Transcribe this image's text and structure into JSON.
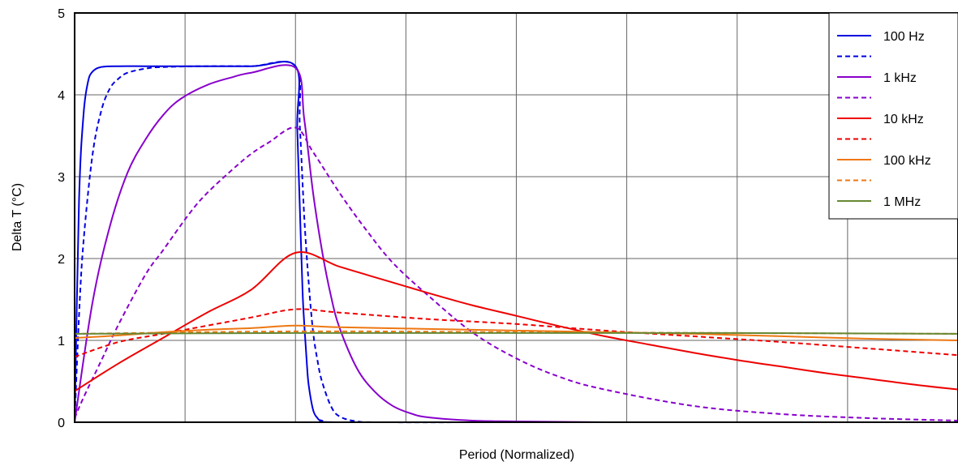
{
  "chart_data": {
    "type": "line",
    "title": "",
    "xlabel": "Period (Normalized)",
    "ylabel": "Delta T (°C)",
    "xlim": [
      0,
      1
    ],
    "ylim": [
      0,
      5
    ],
    "yticks": [
      0,
      1,
      2,
      3,
      4,
      5
    ],
    "x_gridlines": 8,
    "grid": true,
    "legend": {
      "placement": "top-right",
      "entries": [
        {
          "label": "100 Hz",
          "color": "#0000e0",
          "dash": "solid"
        },
        {
          "label": "",
          "color": "#0000e0",
          "dash": "dashed"
        },
        {
          "label": "1 kHz",
          "color": "#8800cc",
          "dash": "solid"
        },
        {
          "label": "",
          "color": "#8800cc",
          "dash": "dashed"
        },
        {
          "label": "10 kHz",
          "color": "#ee0000",
          "dash": "solid"
        },
        {
          "label": "",
          "color": "#ee0000",
          "dash": "dashed"
        },
        {
          "label": "100 kHz",
          "color": "#ee7711",
          "dash": "solid"
        },
        {
          "label": "",
          "color": "#ee7711",
          "dash": "dashed"
        },
        {
          "label": "1 MHz",
          "color": "#668833",
          "dash": "solid"
        }
      ]
    },
    "series": [
      {
        "color": "#0000e0",
        "dash": "solid",
        "x": [
          0,
          0.005,
          0.01,
          0.015,
          0.02,
          0.03,
          0.05,
          0.08,
          0.12,
          0.2,
          0.25,
          0.252,
          0.255,
          0.258,
          0.26,
          0.263,
          0.265,
          0.27,
          0.275,
          0.28,
          0.3,
          0.5,
          0.75,
          1.0
        ],
        "y": [
          0,
          2.7,
          3.75,
          4.15,
          4.28,
          4.34,
          4.35,
          4.35,
          4.35,
          4.35,
          4.35,
          3.6,
          2.6,
          1.6,
          1.2,
          0.7,
          0.45,
          0.15,
          0.05,
          0.02,
          0,
          0,
          0,
          0
        ]
      },
      {
        "color": "#0000e0",
        "dash": "dashed",
        "x": [
          0,
          0.005,
          0.01,
          0.02,
          0.03,
          0.04,
          0.05,
          0.06,
          0.08,
          0.1,
          0.15,
          0.2,
          0.25,
          0.255,
          0.26,
          0.265,
          0.27,
          0.275,
          0.28,
          0.29,
          0.3,
          0.32,
          0.35,
          0.5,
          0.75,
          1.0
        ],
        "y": [
          0,
          1.3,
          2.2,
          3.25,
          3.8,
          4.08,
          4.2,
          4.27,
          4.32,
          4.34,
          4.35,
          4.35,
          4.35,
          3.6,
          2.5,
          1.7,
          1.1,
          0.75,
          0.5,
          0.2,
          0.07,
          0.01,
          0,
          0,
          0,
          0
        ]
      },
      {
        "color": "#8800cc",
        "dash": "solid",
        "x": [
          0,
          0.02,
          0.04,
          0.06,
          0.08,
          0.1,
          0.12,
          0.15,
          0.18,
          0.2,
          0.25,
          0.26,
          0.27,
          0.28,
          0.29,
          0.3,
          0.32,
          0.34,
          0.36,
          0.38,
          0.4,
          0.45,
          0.5,
          0.6,
          0.75,
          1.0
        ],
        "y": [
          0,
          1.45,
          2.4,
          3.05,
          3.45,
          3.75,
          3.95,
          4.12,
          4.22,
          4.27,
          4.33,
          3.7,
          2.8,
          2.1,
          1.55,
          1.15,
          0.65,
          0.37,
          0.2,
          0.11,
          0.06,
          0.02,
          0.01,
          0,
          0,
          0
        ]
      },
      {
        "color": "#8800cc",
        "dash": "dashed",
        "x": [
          0,
          0.01,
          0.03,
          0.05,
          0.08,
          0.1,
          0.13,
          0.15,
          0.18,
          0.2,
          0.22,
          0.25,
          0.27,
          0.3,
          0.33,
          0.36,
          0.4,
          0.45,
          0.5,
          0.55,
          0.6,
          0.7,
          0.8,
          0.9,
          1.0
        ],
        "y": [
          0.05,
          0.3,
          0.75,
          1.2,
          1.8,
          2.1,
          2.55,
          2.8,
          3.1,
          3.28,
          3.42,
          3.6,
          3.3,
          2.8,
          2.35,
          1.95,
          1.55,
          1.1,
          0.78,
          0.55,
          0.4,
          0.2,
          0.1,
          0.05,
          0.02
        ]
      },
      {
        "color": "#ee0000",
        "dash": "solid",
        "x": [
          0,
          0.05,
          0.1,
          0.15,
          0.2,
          0.25,
          0.3,
          0.35,
          0.4,
          0.45,
          0.5,
          0.55,
          0.6,
          0.65,
          0.7,
          0.75,
          0.8,
          0.85,
          0.9,
          0.95,
          1.0
        ],
        "y": [
          0.38,
          0.72,
          1.03,
          1.34,
          1.62,
          2.07,
          1.9,
          1.74,
          1.58,
          1.43,
          1.3,
          1.17,
          1.05,
          0.95,
          0.85,
          0.76,
          0.68,
          0.6,
          0.53,
          0.46,
          0.4
        ]
      },
      {
        "color": "#ee0000",
        "dash": "dashed",
        "x": [
          0,
          0.05,
          0.1,
          0.15,
          0.2,
          0.25,
          0.3,
          0.4,
          0.5,
          0.6,
          0.7,
          0.8,
          0.9,
          1.0
        ],
        "y": [
          0.8,
          0.98,
          1.08,
          1.18,
          1.28,
          1.38,
          1.34,
          1.26,
          1.2,
          1.12,
          1.05,
          0.98,
          0.9,
          0.82
        ]
      },
      {
        "color": "#ee7711",
        "dash": "solid",
        "x": [
          0,
          0.05,
          0.1,
          0.15,
          0.2,
          0.25,
          0.3,
          0.4,
          0.5,
          0.6,
          0.7,
          0.8,
          0.9,
          1.0
        ],
        "y": [
          1.03,
          1.06,
          1.1,
          1.13,
          1.15,
          1.18,
          1.16,
          1.14,
          1.12,
          1.1,
          1.08,
          1.05,
          1.02,
          1.0
        ]
      },
      {
        "color": "#ee7711",
        "dash": "dashed",
        "x": [
          0,
          0.25,
          0.5,
          0.75,
          1.0
        ],
        "y": [
          1.08,
          1.11,
          1.1,
          1.09,
          1.08
        ]
      },
      {
        "color": "#668833",
        "dash": "solid",
        "x": [
          0,
          0.25,
          0.5,
          0.75,
          1.0
        ],
        "y": [
          1.08,
          1.09,
          1.09,
          1.09,
          1.08
        ]
      }
    ]
  }
}
